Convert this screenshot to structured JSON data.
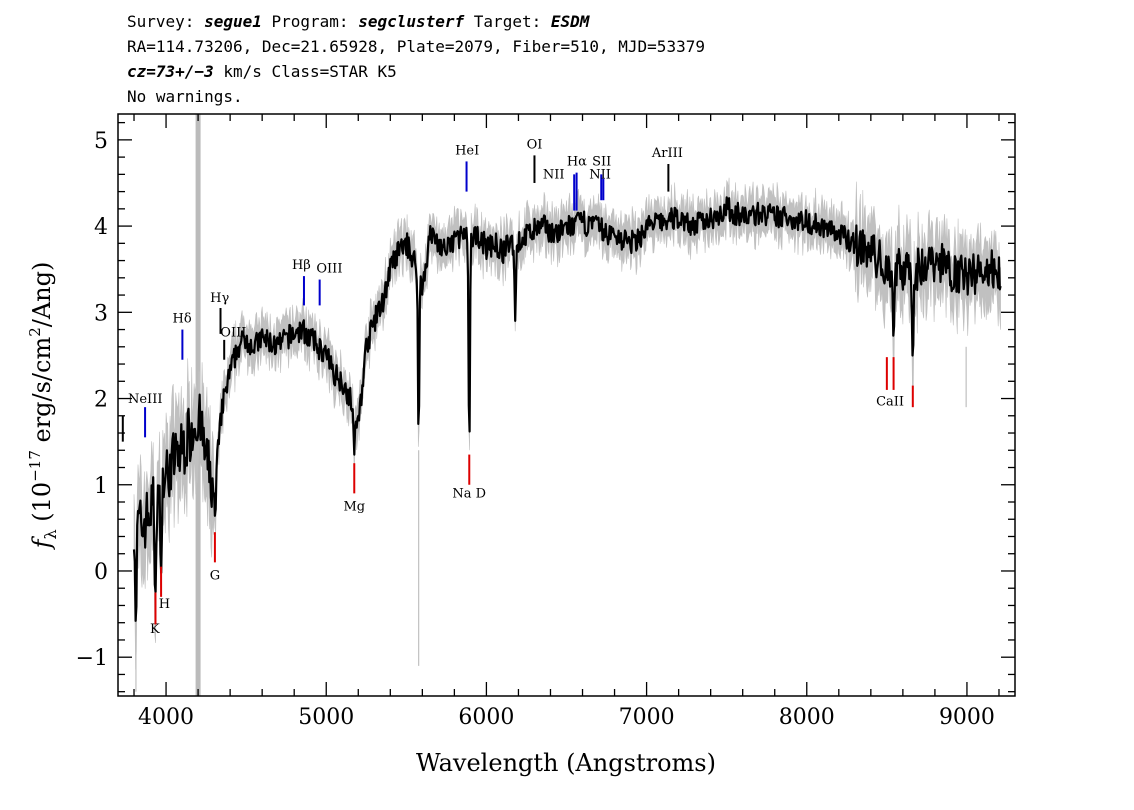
{
  "header": {
    "line1": {
      "survey_label": "Survey: ",
      "survey": "segue1",
      "program_label": " Program: ",
      "program": "segclusterf",
      "target_label": " Target: ",
      "target": "ESDM"
    },
    "line2": "RA=114.73206, Dec=21.65928, Plate=2079, Fiber=510, MJD=53379",
    "line3": {
      "cz": "cz=73+/−3",
      "rest": " km/s Class=STAR K5"
    },
    "line4": "No warnings."
  },
  "colors": {
    "flux": "#000000",
    "error": "#c0c0c0",
    "emission_line": "#0000cc",
    "absorption_line": "#dd0000",
    "masked_band": "#bbbbbb"
  },
  "chart_data": {
    "type": "line",
    "title": "",
    "xlabel": "Wavelength (Angstroms)",
    "ylabel": "f_λ (10^-17 erg/s/cm²/Ang)",
    "xlim": [
      3700,
      9300
    ],
    "ylim": [
      -1.45,
      5.3
    ],
    "x_ticks": [
      4000,
      5000,
      6000,
      7000,
      8000,
      9000
    ],
    "x_minor_step": 200,
    "y_ticks": [
      -1,
      0,
      1,
      2,
      3,
      4,
      5
    ],
    "y_minor_step": 0.2,
    "grid": false,
    "masked_band_x": 4200,
    "series": [
      {
        "x": [
          3800,
          3850,
          3900,
          3950,
          4000,
          4050,
          4100,
          4150,
          4200,
          4250,
          4300,
          4350,
          4400,
          4450,
          4500,
          4550,
          4600,
          4650,
          4700,
          4750,
          4800,
          4850,
          4900,
          4950,
          5000,
          5050,
          5100,
          5150,
          5200,
          5250,
          5300,
          5350,
          5400,
          5450,
          5500,
          5550,
          5600,
          5650,
          5700,
          5750,
          5800,
          5850,
          5900,
          5950,
          6000,
          6050,
          6100,
          6150,
          6200,
          6250,
          6300,
          6350,
          6400,
          6450,
          6500,
          6550,
          6600,
          6650,
          6700,
          6750,
          6800,
          6850,
          6900,
          6950,
          7000,
          7100,
          7200,
          7300,
          7400,
          7500,
          7600,
          7700,
          7800,
          7900,
          8000,
          8100,
          8200,
          8300,
          8400,
          8500,
          8600,
          8700,
          8800,
          8900,
          9000,
          9100,
          9200
        ],
        "y": [
          0.6,
          0.5,
          0.7,
          0.9,
          1.1,
          1.3,
          1.4,
          1.6,
          1.8,
          1.3,
          0.9,
          1.9,
          2.3,
          2.6,
          2.7,
          2.6,
          2.7,
          2.65,
          2.6,
          2.7,
          2.75,
          2.8,
          2.7,
          2.6,
          2.5,
          2.3,
          2.2,
          2.0,
          1.7,
          2.6,
          2.9,
          3.1,
          3.5,
          3.7,
          3.8,
          3.6,
          3.3,
          3.9,
          3.8,
          3.7,
          3.85,
          3.9,
          3.8,
          3.9,
          3.75,
          3.8,
          3.7,
          3.8,
          3.8,
          3.9,
          3.95,
          4.0,
          3.95,
          3.9,
          4.0,
          4.0,
          4.05,
          4.0,
          4.0,
          3.9,
          3.9,
          3.85,
          3.8,
          3.85,
          4.0,
          4.05,
          4.1,
          4.0,
          4.1,
          4.2,
          4.1,
          4.15,
          4.1,
          4.1,
          4.05,
          4.0,
          3.9,
          3.8,
          3.7,
          3.5,
          3.5,
          3.5,
          3.6,
          3.5,
          3.4,
          3.5,
          3.5
        ]
      }
    ],
    "absorption_dips": [
      {
        "x": 3812,
        "y": -0.7
      },
      {
        "x": 3933,
        "y": -0.4
      },
      {
        "x": 3968,
        "y": -0.1
      },
      {
        "x": 4307,
        "y": 0.6
      },
      {
        "x": 5175,
        "y": 1.35
      },
      {
        "x": 5577,
        "y": 1.5
      },
      {
        "x": 5893,
        "y": 1.35
      },
      {
        "x": 6180,
        "y": 2.9
      },
      {
        "x": 8542,
        "y": 2.65
      },
      {
        "x": 8662,
        "y": 2.4
      }
    ],
    "spectral_lines": [
      {
        "label": "NeIII",
        "x": 3869,
        "y_bottom": 1.55,
        "y_top": 1.9,
        "color": "blue",
        "text_x": 3870,
        "text_y": 1.95
      },
      {
        "label": "Hδ",
        "x": 4102,
        "y_bottom": 2.45,
        "y_top": 2.8,
        "color": "blue",
        "text_x": 4100,
        "text_y": 2.88
      },
      {
        "label": "Hγ",
        "x": 4340,
        "y_bottom": 2.75,
        "y_top": 3.05,
        "color": "black",
        "text_x": 4335,
        "text_y": 3.12
      },
      {
        "label": "OIII",
        "x": 4363,
        "y_bottom": 2.45,
        "y_top": 2.68,
        "color": "black",
        "text_x": 4420,
        "text_y": 2.72
      },
      {
        "label": "Hβ",
        "x": 4861,
        "y_bottom": 3.08,
        "y_top": 3.42,
        "color": "blue",
        "text_x": 4845,
        "text_y": 3.5
      },
      {
        "label": "OIII",
        "x": 4959,
        "y_bottom": 3.08,
        "y_top": 3.38,
        "color": "blue",
        "text_x": 5020,
        "text_y": 3.46
      },
      {
        "label": "HeI",
        "x": 5876,
        "y_bottom": 4.4,
        "y_top": 4.75,
        "color": "blue",
        "text_x": 5880,
        "text_y": 4.83
      },
      {
        "label": "OI",
        "x": 6300,
        "y_bottom": 4.5,
        "y_top": 4.82,
        "color": "black",
        "text_x": 6300,
        "text_y": 4.9
      },
      {
        "label": "NII",
        "x": 6548,
        "y_bottom": 4.18,
        "y_top": 4.6,
        "color": "blue",
        "text_x": 6420,
        "text_y": 4.55
      },
      {
        "label": "Hα",
        "x": 6563,
        "y_bottom": 4.18,
        "y_top": 4.62,
        "color": "blue",
        "text_x": 6565,
        "text_y": 4.7
      },
      {
        "label": "SII",
        "x": 6717,
        "y_bottom": 4.3,
        "y_top": 4.6,
        "color": "blue",
        "text_x": 6720,
        "text_y": 4.7
      },
      {
        "label": "NII",
        "x": 6730,
        "y_bottom": 4.3,
        "y_top": 4.55,
        "color": "blue",
        "text_x": 6710,
        "text_y": 4.55
      },
      {
        "label": "ArIII",
        "x": 7136,
        "y_bottom": 4.4,
        "y_top": 4.72,
        "color": "black",
        "text_x": 7130,
        "text_y": 4.8
      },
      {
        "label": "CaII",
        "x": 8542,
        "y_bottom": 2.1,
        "y_top": 2.48,
        "color": "red",
        "text_x": 8520,
        "text_y": 1.92
      },
      {
        "label": "K",
        "x": 3934,
        "y_bottom": -0.62,
        "y_top": -0.25,
        "color": "red",
        "text_x": 3930,
        "text_y": -0.72
      },
      {
        "label": "H",
        "x": 3969,
        "y_bottom": -0.3,
        "y_top": 0.05,
        "color": "red",
        "text_x": 3990,
        "text_y": -0.43
      },
      {
        "label": "G",
        "x": 4305,
        "y_bottom": 0.1,
        "y_top": 0.45,
        "color": "red",
        "text_x": 4305,
        "text_y": -0.1
      },
      {
        "label": "Mg",
        "x": 5175,
        "y_bottom": 0.9,
        "y_top": 1.25,
        "color": "red",
        "text_x": 5175,
        "text_y": 0.7
      },
      {
        "label": "Na D",
        "x": 5893,
        "y_bottom": 1.0,
        "y_top": 1.35,
        "color": "red",
        "text_x": 5893,
        "text_y": 0.85
      }
    ],
    "extra_ticks": [
      {
        "x": 8500,
        "y_bottom": 2.1,
        "y_top": 2.48,
        "color": "red"
      },
      {
        "x": 8662,
        "y_bottom": 1.9,
        "y_top": 2.15,
        "color": "red"
      },
      {
        "x": 3730,
        "y_bottom": 1.5,
        "y_top": 1.8,
        "color": "black"
      }
    ]
  }
}
